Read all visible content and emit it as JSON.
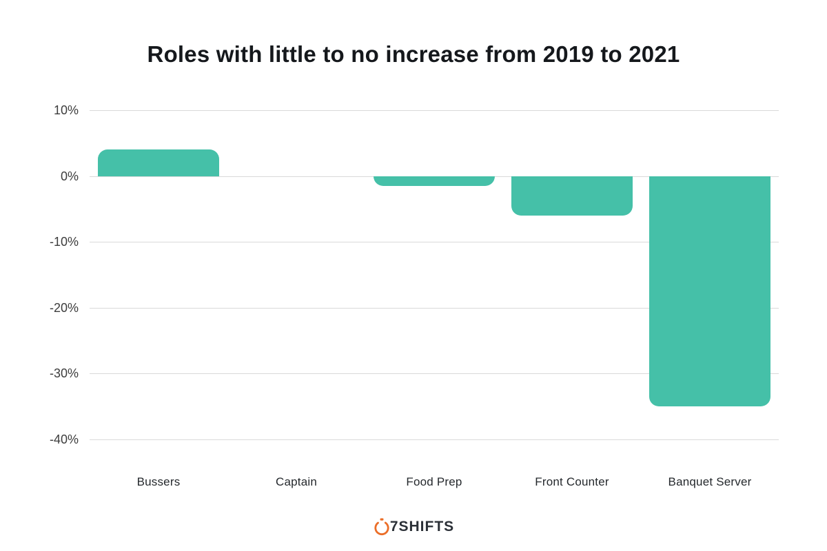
{
  "title": "Roles with little to no increase from 2019 to 2021",
  "chart_data": {
    "type": "bar",
    "title": "Roles with little to no increase from 2019 to 2021",
    "categories": [
      "Bussers",
      "Captain",
      "Food Prep",
      "Front Counter",
      "Banquet Server"
    ],
    "values": [
      4,
      0,
      -1.5,
      -6,
      -35
    ],
    "xlabel": "",
    "ylabel": "",
    "ylim": [
      -40,
      10
    ],
    "yticks": [
      10,
      0,
      -10,
      -20,
      -30,
      -40
    ],
    "ytick_format": "{v}%",
    "grid": true,
    "legend": false,
    "bar_color": "#45c0a8",
    "gridline_color": "#d9d9d9"
  },
  "footer": {
    "logo_text": "7SHIFTS",
    "logo_icon": "stopwatch-icon",
    "logo_color": "#eb6e28"
  }
}
